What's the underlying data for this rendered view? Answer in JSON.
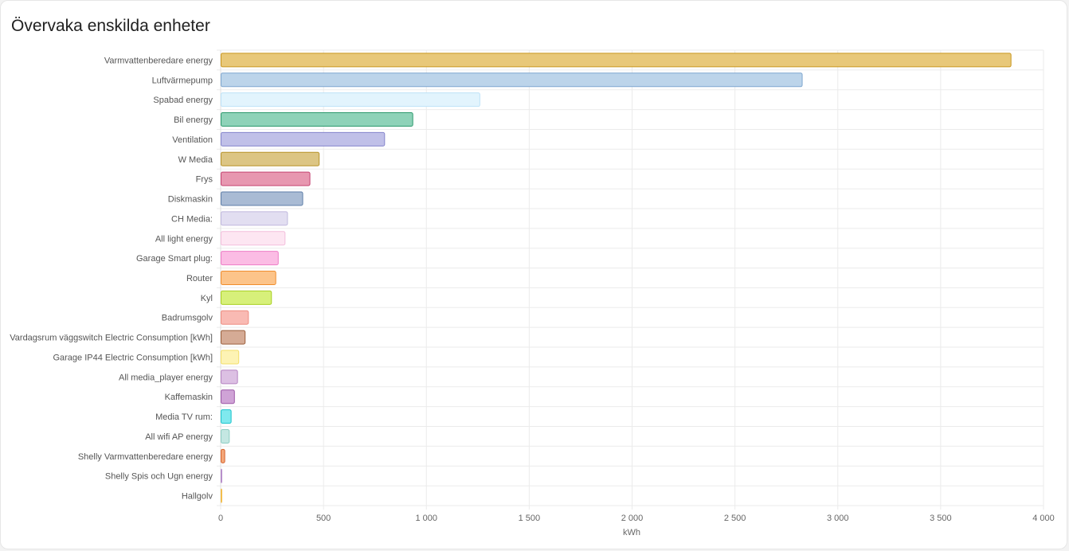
{
  "card": {
    "title": "Övervaka enskilda enheter"
  },
  "chart_data": {
    "type": "bar",
    "orientation": "horizontal",
    "xlabel": "kWh",
    "xlim": [
      0,
      4000
    ],
    "xticks": [
      0,
      500,
      1000,
      1500,
      2000,
      2500,
      3000,
      3500,
      4000
    ],
    "xtick_labels": [
      "0",
      "500",
      "1 000",
      "1 500",
      "2 000",
      "2 500",
      "3 000",
      "3 500",
      "4 000"
    ],
    "grid": true,
    "categories": [
      "Varmvattenberedare energy",
      "Luftvärmepump",
      "Spabad energy",
      "Bil energy",
      "Ventilation",
      "W Media",
      "Frys",
      "Diskmaskin",
      "CH Media:",
      "All light energy",
      "Garage Smart plug:",
      "Router",
      "Kyl",
      "Badrumsgolv",
      "Vardagsrum väggswitch Electric Consumption [kWh]",
      "Garage IP44 Electric Consumption [kWh]",
      "All media_player energy",
      "Kaffemaskin",
      "Media TV rum:",
      "All wifi AP energy",
      "Shelly Varmvattenberedare energy",
      "Shelly Spis och Ugn energy",
      "Hallgolv"
    ],
    "values": [
      3840,
      2825,
      1258,
      932,
      795,
      477,
      432,
      397,
      323,
      311,
      278,
      266,
      245,
      133,
      117,
      86,
      80,
      65,
      49,
      40,
      18,
      3,
      2
    ],
    "colors": [
      {
        "fill": "#e8c879",
        "stroke": "#c9961f"
      },
      {
        "fill": "#bcd4ea",
        "stroke": "#7ea6cf"
      },
      {
        "fill": "#e2f4fd",
        "stroke": "#bde2f7"
      },
      {
        "fill": "#8ed2b8",
        "stroke": "#2d9a6e"
      },
      {
        "fill": "#c0c0e8",
        "stroke": "#8585cc"
      },
      {
        "fill": "#dcc583",
        "stroke": "#b8942a"
      },
      {
        "fill": "#e797b0",
        "stroke": "#c54472"
      },
      {
        "fill": "#a9bbd4",
        "stroke": "#5f7fa8"
      },
      {
        "fill": "#e2def1",
        "stroke": "#c0b8de"
      },
      {
        "fill": "#fde6f2",
        "stroke": "#f3bedc"
      },
      {
        "fill": "#fbbce4",
        "stroke": "#ee7cc6"
      },
      {
        "fill": "#fcc48a",
        "stroke": "#f08d2d"
      },
      {
        "fill": "#d7f07a",
        "stroke": "#a9cf23"
      },
      {
        "fill": "#f9bab3",
        "stroke": "#ee8c80"
      },
      {
        "fill": "#d5ab95",
        "stroke": "#9b5f3c"
      },
      {
        "fill": "#fdf3b4",
        "stroke": "#f4df6a"
      },
      {
        "fill": "#dcc0e3",
        "stroke": "#b583c2"
      },
      {
        "fill": "#cfa3d6",
        "stroke": "#9b56a6"
      },
      {
        "fill": "#7fe9ee",
        "stroke": "#1cc3cb"
      },
      {
        "fill": "#c4e7e2",
        "stroke": "#8dcdc3"
      },
      {
        "fill": "#f4a779",
        "stroke": "#d5622c"
      },
      {
        "fill": "#e1c9ea",
        "stroke": "#b78fcb"
      },
      {
        "fill": "#fbe2a8",
        "stroke": "#f2be4d"
      }
    ]
  }
}
